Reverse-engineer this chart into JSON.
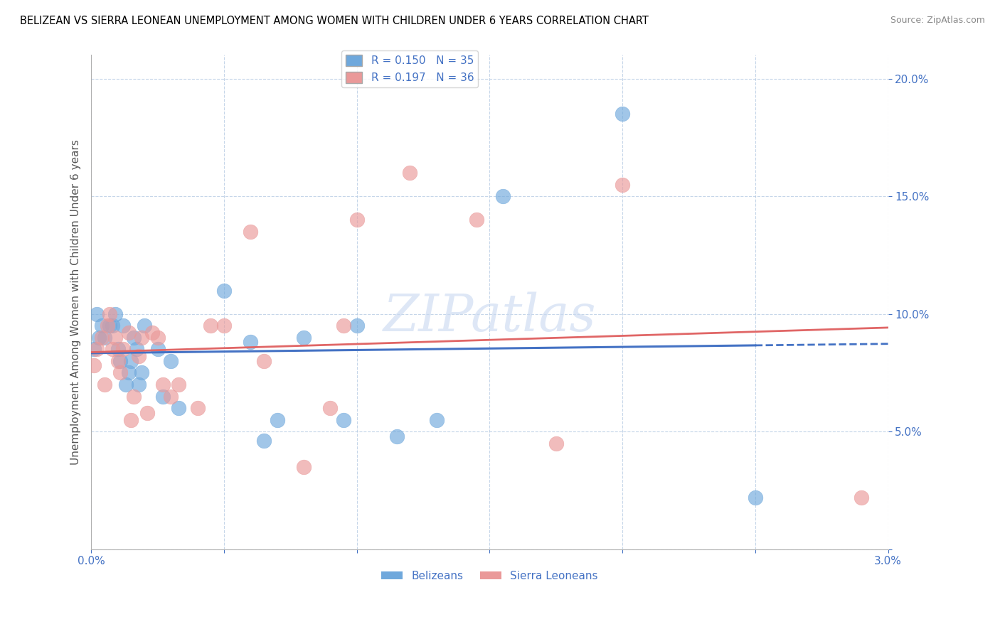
{
  "title": "BELIZEAN VS SIERRA LEONEAN UNEMPLOYMENT AMONG WOMEN WITH CHILDREN UNDER 6 YEARS CORRELATION CHART",
  "source": "Source: ZipAtlas.com",
  "ylabel": "Unemployment Among Women with Children Under 6 years",
  "xlim": [
    0.0,
    0.03
  ],
  "ylim": [
    0.0,
    0.21
  ],
  "xticks": [
    0.0,
    0.005,
    0.01,
    0.015,
    0.02,
    0.025,
    0.03
  ],
  "xticklabels": [
    "0.0%",
    "",
    "",
    "",
    "",
    "",
    "3.0%"
  ],
  "yticks": [
    0.0,
    0.05,
    0.1,
    0.15,
    0.2
  ],
  "yticklabels": [
    "",
    "5.0%",
    "10.0%",
    "15.0%",
    "20.0%"
  ],
  "belizean_R": 0.15,
  "belizean_N": 35,
  "sierraleone_R": 0.197,
  "sierraleone_N": 36,
  "color_blue": "#6fa8dc",
  "color_pink": "#ea9999",
  "line_blue": "#4472c4",
  "line_pink": "#e06666",
  "belizean_x": [
    0.0001,
    0.0002,
    0.0003,
    0.0004,
    0.0005,
    0.0007,
    0.0008,
    0.0009,
    0.001,
    0.0011,
    0.0012,
    0.0013,
    0.0014,
    0.0015,
    0.0016,
    0.0017,
    0.0018,
    0.0019,
    0.002,
    0.0025,
    0.0027,
    0.003,
    0.0033,
    0.005,
    0.006,
    0.0065,
    0.007,
    0.008,
    0.0095,
    0.01,
    0.0115,
    0.013,
    0.0155,
    0.02,
    0.025
  ],
  "belizean_y": [
    0.085,
    0.1,
    0.09,
    0.095,
    0.09,
    0.095,
    0.095,
    0.1,
    0.085,
    0.08,
    0.095,
    0.07,
    0.075,
    0.08,
    0.09,
    0.085,
    0.07,
    0.075,
    0.095,
    0.085,
    0.065,
    0.08,
    0.06,
    0.11,
    0.088,
    0.046,
    0.055,
    0.09,
    0.055,
    0.095,
    0.048,
    0.055,
    0.15,
    0.185,
    0.022
  ],
  "sierraleone_x": [
    0.0001,
    0.0002,
    0.0004,
    0.0005,
    0.0006,
    0.0007,
    0.0008,
    0.0009,
    0.001,
    0.0011,
    0.0012,
    0.0014,
    0.0015,
    0.0016,
    0.0018,
    0.0019,
    0.0021,
    0.0023,
    0.0025,
    0.0027,
    0.003,
    0.0033,
    0.004,
    0.0045,
    0.005,
    0.006,
    0.0065,
    0.008,
    0.009,
    0.0095,
    0.01,
    0.012,
    0.0145,
    0.0175,
    0.02,
    0.029
  ],
  "sierraleone_y": [
    0.078,
    0.085,
    0.09,
    0.07,
    0.095,
    0.1,
    0.085,
    0.09,
    0.08,
    0.075,
    0.085,
    0.092,
    0.055,
    0.065,
    0.082,
    0.09,
    0.058,
    0.092,
    0.09,
    0.07,
    0.065,
    0.07,
    0.06,
    0.095,
    0.095,
    0.135,
    0.08,
    0.035,
    0.06,
    0.095,
    0.14,
    0.16,
    0.14,
    0.045,
    0.155,
    0.022
  ]
}
